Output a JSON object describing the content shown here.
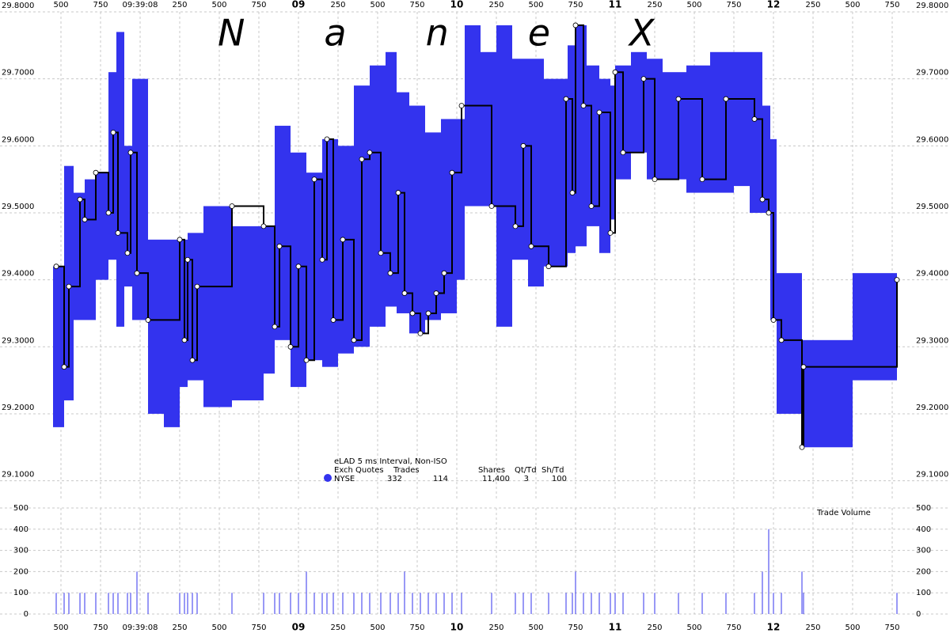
{
  "chart_data": [
    {
      "type": "step",
      "watermark": "NaneX",
      "xlim": [
        7.4,
        12.85
      ],
      "xticks": [
        {
          "value": 7.5,
          "label": "500"
        },
        {
          "value": 7.75,
          "label": "750"
        },
        {
          "value": 8,
          "label": "09:39:08"
        },
        {
          "value": 8.25,
          "label": "250"
        },
        {
          "value": 8.5,
          "label": "500"
        },
        {
          "value": 8.75,
          "label": "750"
        },
        {
          "value": 9,
          "label": "09"
        },
        {
          "value": 9.25,
          "label": "250"
        },
        {
          "value": 9.5,
          "label": "500"
        },
        {
          "value": 9.75,
          "label": "750"
        },
        {
          "value": 10,
          "label": "10"
        },
        {
          "value": 10.25,
          "label": "250"
        },
        {
          "value": 10.5,
          "label": "500"
        },
        {
          "value": 10.75,
          "label": "750"
        },
        {
          "value": 11,
          "label": "11"
        },
        {
          "value": 11.25,
          "label": "250"
        },
        {
          "value": 11.5,
          "label": "500"
        },
        {
          "value": 11.75,
          "label": "750"
        },
        {
          "value": 12,
          "label": "12"
        },
        {
          "value": 12.25,
          "label": "250"
        },
        {
          "value": 12.5,
          "label": "500"
        },
        {
          "value": 12.75,
          "label": "750"
        }
      ],
      "ylim": [
        29.07,
        29.8
      ],
      "yticks": [
        {
          "value": 29.1,
          "label": "29.1000"
        },
        {
          "value": 29.2,
          "label": "29.2000"
        },
        {
          "value": 29.3,
          "label": "29.3000"
        },
        {
          "value": 29.4,
          "label": "29.4000"
        },
        {
          "value": 29.5,
          "label": "29.5000"
        },
        {
          "value": 29.6,
          "label": "29.6000"
        },
        {
          "value": 29.7,
          "label": "29.7000"
        },
        {
          "value": 29.8,
          "label": "29.8000"
        }
      ],
      "grid": true,
      "quotes": {
        "color": "#3333ee",
        "x": [
          7.45,
          7.52,
          7.58,
          7.65,
          7.72,
          7.8,
          7.85,
          7.9,
          7.95,
          8.05,
          8.15,
          8.25,
          8.3,
          8.4,
          8.58,
          8.78,
          8.85,
          8.95,
          9.05,
          9.15,
          9.25,
          9.35,
          9.45,
          9.55,
          9.62,
          9.7,
          9.8,
          9.9,
          10.0,
          10.05,
          10.15,
          10.25,
          10.35,
          10.45,
          10.55,
          10.7,
          10.75,
          10.82,
          10.9,
          10.97,
          11.0,
          11.1,
          11.2,
          11.3,
          11.45,
          11.6,
          11.75,
          11.85,
          11.93,
          11.98,
          12.02,
          12.18,
          12.5,
          12.78
        ],
        "bid": [
          29.18,
          29.22,
          29.34,
          29.34,
          29.4,
          29.43,
          29.33,
          29.39,
          29.34,
          29.2,
          29.18,
          29.24,
          29.25,
          29.21,
          29.22,
          29.26,
          29.31,
          29.24,
          29.28,
          29.27,
          29.29,
          29.3,
          29.33,
          29.36,
          29.35,
          29.32,
          29.34,
          29.35,
          29.4,
          29.51,
          29.51,
          29.33,
          29.43,
          29.39,
          29.42,
          29.44,
          29.45,
          29.48,
          29.44,
          29.49,
          29.55,
          29.59,
          29.55,
          29.55,
          29.53,
          29.53,
          29.54,
          29.5,
          29.5,
          29.34,
          29.2,
          29.15,
          29.25,
          null
        ],
        "ask": [
          29.42,
          29.57,
          29.53,
          29.55,
          29.56,
          29.71,
          29.77,
          29.6,
          29.7,
          29.46,
          29.46,
          29.46,
          29.47,
          29.51,
          29.48,
          29.48,
          29.63,
          29.59,
          29.56,
          29.61,
          29.6,
          29.69,
          29.72,
          29.74,
          29.68,
          29.66,
          29.62,
          29.64,
          29.64,
          29.78,
          29.74,
          29.78,
          29.73,
          29.73,
          29.7,
          29.75,
          29.78,
          29.72,
          29.7,
          29.69,
          29.72,
          29.74,
          29.73,
          29.71,
          29.72,
          29.74,
          29.74,
          29.74,
          29.66,
          29.61,
          29.41,
          29.31,
          29.41,
          null
        ]
      },
      "trades": {
        "color": "#000000",
        "x": [
          7.47,
          7.52,
          7.55,
          7.62,
          7.65,
          7.72,
          7.8,
          7.83,
          7.86,
          7.92,
          7.94,
          7.98,
          8.05,
          8.25,
          8.28,
          8.3,
          8.33,
          8.36,
          8.58,
          8.78,
          8.85,
          8.88,
          8.95,
          9.0,
          9.05,
          9.1,
          9.15,
          9.18,
          9.22,
          9.28,
          9.35,
          9.4,
          9.45,
          9.52,
          9.58,
          9.63,
          9.67,
          9.72,
          9.77,
          9.82,
          9.87,
          9.92,
          9.97,
          10.03,
          10.22,
          10.37,
          10.42,
          10.47,
          10.58,
          10.69,
          10.73,
          10.75,
          10.8,
          10.85,
          10.9,
          10.97,
          11.0,
          11.05,
          11.18,
          11.25,
          11.4,
          11.55,
          11.7,
          11.88,
          11.93,
          11.97,
          12.0,
          12.05,
          12.18,
          12.19,
          12.78
        ],
        "values": [
          29.42,
          29.27,
          29.39,
          29.52,
          29.49,
          29.56,
          29.5,
          29.62,
          29.47,
          29.44,
          29.59,
          29.41,
          29.34,
          29.46,
          29.31,
          29.43,
          29.28,
          29.39,
          29.51,
          29.48,
          29.33,
          29.45,
          29.3,
          29.42,
          29.28,
          29.55,
          29.43,
          29.61,
          29.34,
          29.46,
          29.31,
          29.58,
          29.59,
          29.44,
          29.41,
          29.53,
          29.38,
          29.35,
          29.32,
          29.35,
          29.38,
          29.41,
          29.56,
          29.66,
          29.51,
          29.48,
          29.6,
          29.45,
          29.42,
          29.67,
          29.53,
          29.78,
          29.66,
          29.51,
          29.65,
          29.47,
          29.71,
          29.59,
          29.7,
          29.55,
          29.67,
          29.55,
          29.67,
          29.64,
          29.52,
          29.5,
          29.34,
          29.31,
          29.15,
          29.27,
          29.4
        ]
      },
      "legend": {
        "title": "eLAD 5 ms Interval, Non-ISO",
        "header": [
          "Exch",
          "Quotes",
          "Trades",
          "Shares",
          "Qt/Td",
          "Sh/Td"
        ],
        "row": [
          "NYSE",
          "332",
          "114",
          "11,400",
          "3",
          "100"
        ]
      }
    },
    {
      "type": "bar",
      "label": "Trade Volume",
      "color": "#3333ee",
      "xlim": [
        7.4,
        12.85
      ],
      "xticks": [
        {
          "value": 7.5,
          "label": "500"
        },
        {
          "value": 7.75,
          "label": "750"
        },
        {
          "value": 8,
          "label": "09:39:08"
        },
        {
          "value": 8.25,
          "label": "250"
        },
        {
          "value": 8.5,
          "label": "500"
        },
        {
          "value": 8.75,
          "label": "750"
        },
        {
          "value": 9,
          "label": "09"
        },
        {
          "value": 9.25,
          "label": "250"
        },
        {
          "value": 9.5,
          "label": "500"
        },
        {
          "value": 9.75,
          "label": "750"
        },
        {
          "value": 10,
          "label": "10"
        },
        {
          "value": 10.25,
          "label": "250"
        },
        {
          "value": 10.5,
          "label": "500"
        },
        {
          "value": 10.75,
          "label": "750"
        },
        {
          "value": 11,
          "label": "11"
        },
        {
          "value": 11.25,
          "label": "250"
        },
        {
          "value": 11.5,
          "label": "500"
        },
        {
          "value": 11.75,
          "label": "750"
        },
        {
          "value": 12,
          "label": "12"
        },
        {
          "value": 12.25,
          "label": "250"
        },
        {
          "value": 12.5,
          "label": "500"
        },
        {
          "value": 12.75,
          "label": "750"
        }
      ],
      "ylim": [
        0,
        500
      ],
      "yticks": [
        0,
        100,
        200,
        300,
        400,
        500
      ],
      "grid": true,
      "x": [
        7.47,
        7.52,
        7.55,
        7.62,
        7.65,
        7.72,
        7.8,
        7.83,
        7.86,
        7.92,
        7.94,
        7.98,
        8.05,
        8.25,
        8.28,
        8.3,
        8.33,
        8.36,
        8.58,
        8.78,
        8.85,
        8.88,
        8.95,
        9.0,
        9.05,
        9.1,
        9.15,
        9.18,
        9.22,
        9.28,
        9.35,
        9.4,
        9.45,
        9.52,
        9.58,
        9.63,
        9.67,
        9.72,
        9.77,
        9.82,
        9.87,
        9.92,
        9.97,
        10.03,
        10.22,
        10.37,
        10.42,
        10.47,
        10.58,
        10.69,
        10.73,
        10.75,
        10.8,
        10.85,
        10.9,
        10.97,
        11.0,
        11.05,
        11.18,
        11.25,
        11.4,
        11.55,
        11.7,
        11.88,
        11.93,
        11.97,
        12.0,
        12.05,
        12.18,
        12.19,
        12.78
      ],
      "values": [
        100,
        100,
        100,
        100,
        100,
        100,
        100,
        100,
        100,
        100,
        100,
        200,
        100,
        100,
        100,
        100,
        100,
        100,
        100,
        100,
        100,
        100,
        100,
        100,
        200,
        100,
        100,
        100,
        100,
        100,
        100,
        100,
        100,
        100,
        100,
        100,
        200,
        100,
        100,
        100,
        100,
        100,
        100,
        100,
        100,
        100,
        100,
        100,
        100,
        100,
        100,
        200,
        100,
        100,
        100,
        100,
        100,
        100,
        100,
        100,
        100,
        100,
        100,
        100,
        200,
        400,
        100,
        100,
        200,
        100,
        100
      ]
    }
  ]
}
